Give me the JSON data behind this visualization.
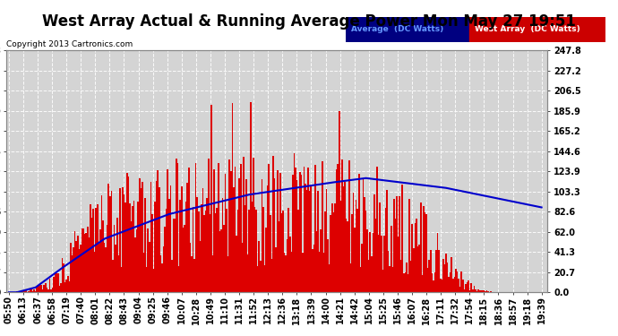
{
  "title": "West Array Actual & Running Average Power Mon May 27 19:51",
  "copyright": "Copyright 2013 Cartronics.com",
  "legend_labels": [
    "Average  (DC Watts)",
    "West Array  (DC Watts)"
  ],
  "legend_bg_colors": [
    "#000080",
    "#cc0000"
  ],
  "legend_text_colors": [
    "#4444ff",
    "#ff4444"
  ],
  "y_ticks": [
    0.0,
    20.7,
    41.3,
    62.0,
    82.6,
    103.3,
    123.9,
    144.6,
    165.2,
    185.9,
    206.5,
    227.2,
    247.8
  ],
  "y_max": 247.8,
  "y_min": 0.0,
  "bg_color": "#ffffff",
  "plot_bg_color": "#d4d4d4",
  "grid_color": "#ffffff",
  "bar_color": "#dd0000",
  "line_color": "#0000cc",
  "title_fontsize": 12,
  "tick_label_fontsize": 7,
  "x_labels": [
    "05:50",
    "06:13",
    "06:37",
    "06:58",
    "07:19",
    "07:40",
    "08:01",
    "08:22",
    "08:43",
    "09:04",
    "09:25",
    "09:46",
    "10:07",
    "10:28",
    "10:49",
    "11:10",
    "11:31",
    "11:52",
    "12:13",
    "12:36",
    "13:18",
    "13:39",
    "14:00",
    "14:21",
    "14:42",
    "15:04",
    "15:25",
    "15:46",
    "16:07",
    "16:28",
    "17:11",
    "17:32",
    "17:54",
    "18:15",
    "18:36",
    "18:57",
    "19:18",
    "19:39"
  ]
}
